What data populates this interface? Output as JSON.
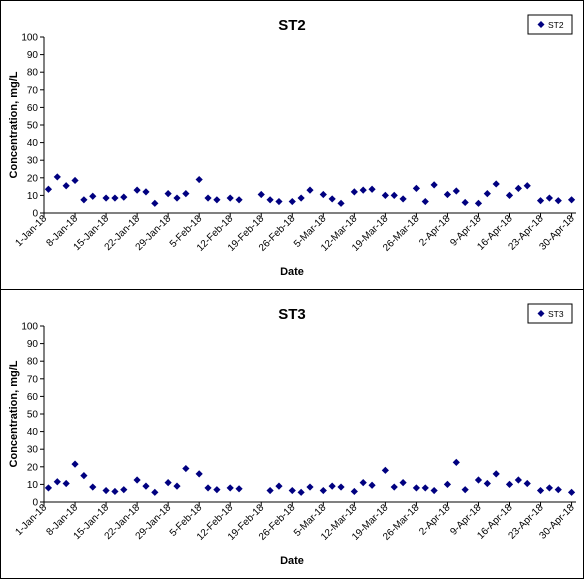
{
  "chart_data": [
    {
      "type": "scatter",
      "title": "ST2",
      "xlabel": "Date",
      "ylabel": "Concentration, mg/L",
      "ylim": [
        0,
        100
      ],
      "yticks": [
        0,
        10,
        20,
        30,
        40,
        50,
        60,
        70,
        80,
        90,
        100
      ],
      "xlim": [
        "2018-01-01",
        "2018-05-01"
      ],
      "xtick_labels": [
        "1-Jan-18",
        "8-Jan-18",
        "15-Jan-18",
        "22-Jan-18",
        "29-Jan-18",
        "5-Feb-18",
        "12-Feb-18",
        "19-Feb-18",
        "26-Feb-18",
        "5-Mar-18",
        "12-Mar-18",
        "19-Mar-18",
        "26-Mar-18",
        "2-Apr-18",
        "9-Apr-18",
        "16-Apr-18",
        "23-Apr-18",
        "30-Apr-18"
      ],
      "grid": false,
      "legend": "top-right",
      "marker": "diamond",
      "color": "#000080",
      "series": [
        {
          "name": "ST2",
          "x": [
            "2018-01-02",
            "2018-01-04",
            "2018-01-06",
            "2018-01-08",
            "2018-01-10",
            "2018-01-12",
            "2018-01-15",
            "2018-01-17",
            "2018-01-19",
            "2018-01-22",
            "2018-01-24",
            "2018-01-26",
            "2018-01-29",
            "2018-01-31",
            "2018-02-02",
            "2018-02-05",
            "2018-02-07",
            "2018-02-09",
            "2018-02-12",
            "2018-02-14",
            "2018-02-19",
            "2018-02-21",
            "2018-02-23",
            "2018-02-26",
            "2018-02-28",
            "2018-03-02",
            "2018-03-05",
            "2018-03-07",
            "2018-03-09",
            "2018-03-12",
            "2018-03-14",
            "2018-03-16",
            "2018-03-19",
            "2018-03-21",
            "2018-03-23",
            "2018-03-26",
            "2018-03-28",
            "2018-03-30",
            "2018-04-02",
            "2018-04-04",
            "2018-04-06",
            "2018-04-09",
            "2018-04-11",
            "2018-04-13",
            "2018-04-16",
            "2018-04-18",
            "2018-04-20",
            "2018-04-23",
            "2018-04-25",
            "2018-04-27",
            "2018-04-30"
          ],
          "y": [
            13.5,
            20.5,
            15.5,
            18.5,
            7.5,
            9.5,
            8.5,
            8.5,
            9.0,
            13.0,
            12.0,
            5.5,
            11.0,
            8.5,
            11.0,
            19.0,
            8.5,
            7.5,
            8.5,
            7.5,
            10.5,
            7.5,
            6.5,
            6.5,
            8.5,
            13.0,
            10.5,
            8.0,
            5.5,
            12.0,
            13.0,
            13.5,
            10.0,
            10.0,
            8.0,
            14.0,
            6.5,
            16.0,
            10.5,
            12.5,
            6.0,
            5.5,
            11.0,
            16.5,
            10.0,
            14.0,
            15.5,
            7.0,
            8.5,
            7.0,
            7.5
          ]
        }
      ]
    },
    {
      "type": "scatter",
      "title": "ST3",
      "xlabel": "Date",
      "ylabel": "Concentration, mg/L",
      "ylim": [
        0,
        100
      ],
      "yticks": [
        0,
        10,
        20,
        30,
        40,
        50,
        60,
        70,
        80,
        90,
        100
      ],
      "xlim": [
        "2018-01-01",
        "2018-05-01"
      ],
      "xtick_labels": [
        "1-Jan-18",
        "8-Jan-18",
        "15-Jan-18",
        "22-Jan-18",
        "29-Jan-18",
        "5-Feb-18",
        "12-Feb-18",
        "19-Feb-18",
        "26-Feb-18",
        "5-Mar-18",
        "12-Mar-18",
        "19-Mar-18",
        "26-Mar-18",
        "2-Apr-18",
        "9-Apr-18",
        "16-Apr-18",
        "23-Apr-18",
        "30-Apr-18"
      ],
      "grid": false,
      "legend": "top-right",
      "marker": "diamond",
      "color": "#000080",
      "series": [
        {
          "name": "ST3",
          "x": [
            "2018-01-02",
            "2018-01-04",
            "2018-01-06",
            "2018-01-08",
            "2018-01-10",
            "2018-01-12",
            "2018-01-15",
            "2018-01-17",
            "2018-01-19",
            "2018-01-22",
            "2018-01-24",
            "2018-01-26",
            "2018-01-29",
            "2018-01-31",
            "2018-02-02",
            "2018-02-05",
            "2018-02-07",
            "2018-02-09",
            "2018-02-12",
            "2018-02-14",
            "2018-02-21",
            "2018-02-23",
            "2018-02-26",
            "2018-02-28",
            "2018-03-02",
            "2018-03-05",
            "2018-03-07",
            "2018-03-09",
            "2018-03-12",
            "2018-03-14",
            "2018-03-16",
            "2018-03-19",
            "2018-03-21",
            "2018-03-23",
            "2018-03-26",
            "2018-03-28",
            "2018-03-30",
            "2018-04-02",
            "2018-04-04",
            "2018-04-06",
            "2018-04-09",
            "2018-04-11",
            "2018-04-13",
            "2018-04-16",
            "2018-04-18",
            "2018-04-20",
            "2018-04-23",
            "2018-04-25",
            "2018-04-27",
            "2018-04-30"
          ],
          "y": [
            8.0,
            11.5,
            10.5,
            21.5,
            15.0,
            8.5,
            6.5,
            6.0,
            7.0,
            12.5,
            9.0,
            5.5,
            11.0,
            9.0,
            19.0,
            16.0,
            8.0,
            7.0,
            8.0,
            7.5,
            6.5,
            9.0,
            6.5,
            5.5,
            8.5,
            6.5,
            9.0,
            8.5,
            6.0,
            11.0,
            9.5,
            18.0,
            8.5,
            11.0,
            8.0,
            8.0,
            6.5,
            10.0,
            22.5,
            7.0,
            12.5,
            10.5,
            16.0,
            10.0,
            12.5,
            10.5,
            6.5,
            8.0,
            7.0,
            5.5
          ]
        }
      ]
    }
  ]
}
